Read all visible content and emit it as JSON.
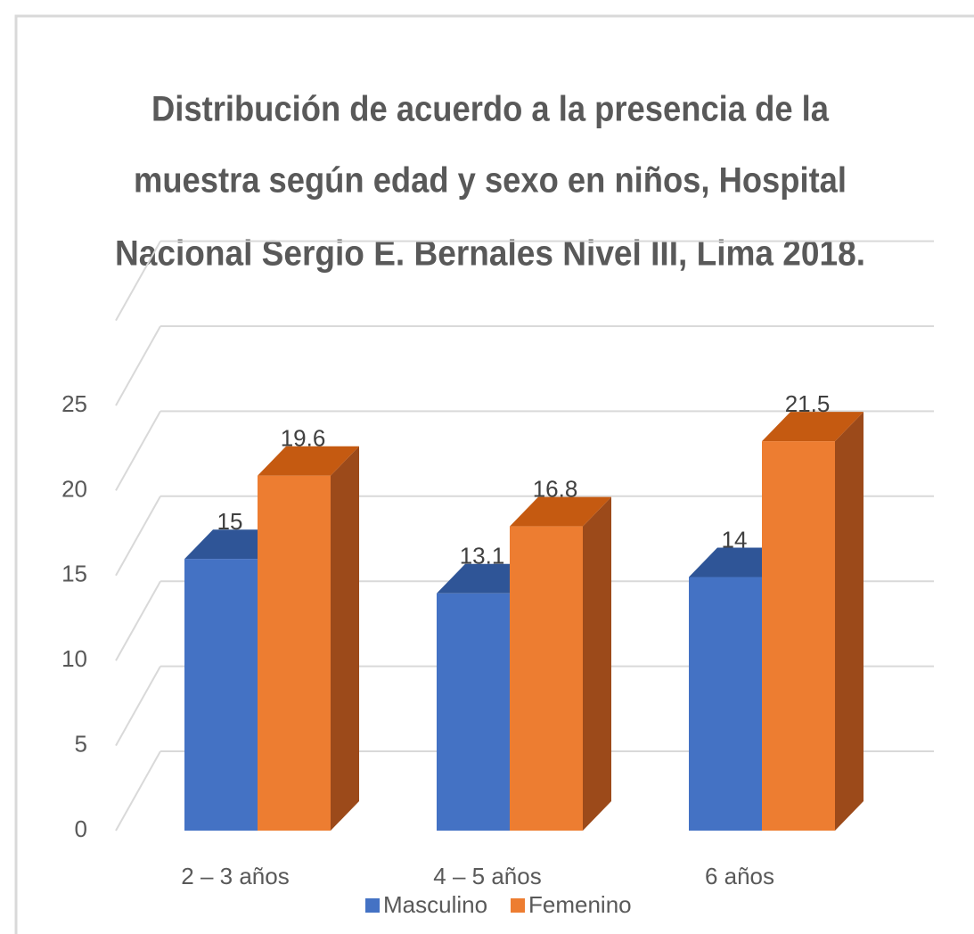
{
  "chart_data": {
    "type": "bar3d",
    "title": [
      "Distribución de acuerdo a la presencia de la",
      "muestra según edad y sexo en niños, Hospital",
      "Nacional Sergio E. Bernales Nivel III, Lima 2018."
    ],
    "categories": [
      "2 – 3 años",
      "4 – 5 años",
      "6 años"
    ],
    "series": [
      {
        "name": "Masculino",
        "color": "#4472c4",
        "values": [
          15,
          13.1,
          14
        ]
      },
      {
        "name": "Femenino",
        "color": "#ed7d31",
        "values": [
          19.6,
          16.8,
          21.5
        ]
      }
    ],
    "ylim": [
      0,
      30
    ],
    "yticks": [
      0,
      5,
      10,
      15,
      20,
      25
    ],
    "grid": true,
    "legend": "bottom"
  }
}
